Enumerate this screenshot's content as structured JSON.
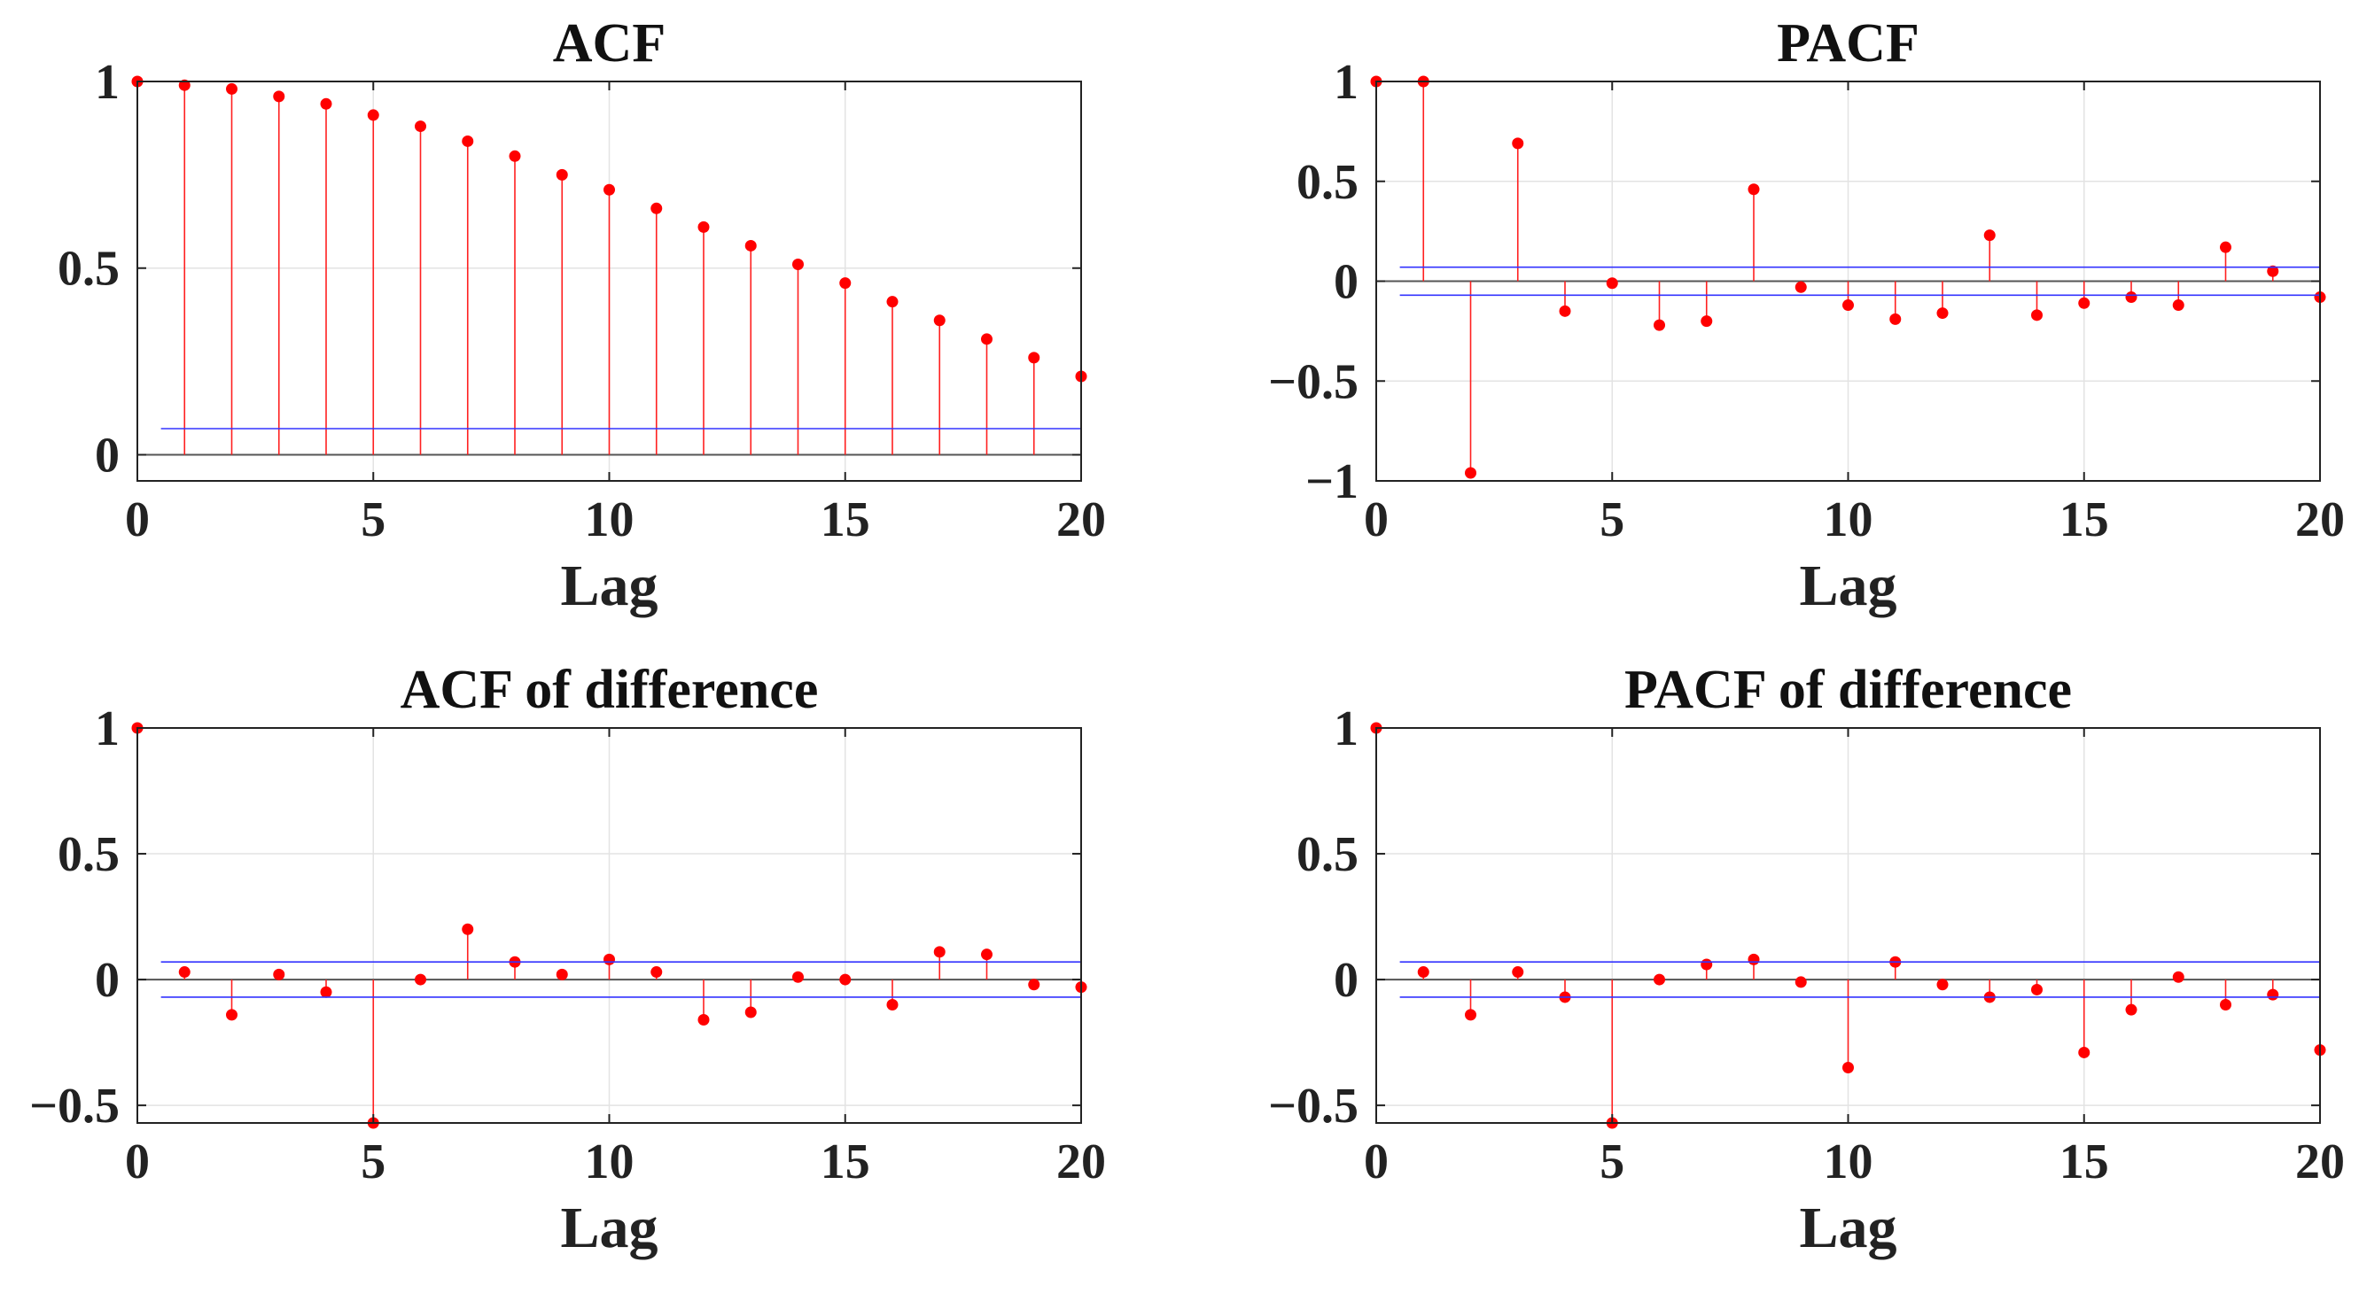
{
  "colors": {
    "stem": "#ff2020",
    "marker": "#ff0000",
    "bound": "#3333ff",
    "zero": "#555555",
    "grid": "#e3e3e3",
    "axis": "#222222"
  },
  "chart_data": [
    {
      "type": "stem",
      "title": "ACF",
      "xlabel": "Lag",
      "ylabel": "",
      "xlim": [
        0,
        20
      ],
      "ylim": [
        -0.07,
        1.0
      ],
      "x_ticks": [
        0,
        5,
        10,
        15,
        20
      ],
      "x_tick_labels": [
        "0",
        "5",
        "10",
        "15",
        "20"
      ],
      "y_ticks": [
        0,
        0.5,
        1
      ],
      "y_tick_labels": [
        "0",
        "0.5",
        "1"
      ],
      "grid": true,
      "lags": [
        0,
        1,
        2,
        3,
        4,
        5,
        6,
        7,
        8,
        9,
        10,
        11,
        12,
        13,
        14,
        15,
        16,
        17,
        18,
        19,
        20
      ],
      "values": [
        1.0,
        0.99,
        0.98,
        0.96,
        0.94,
        0.91,
        0.88,
        0.84,
        0.8,
        0.75,
        0.71,
        0.66,
        0.61,
        0.56,
        0.51,
        0.46,
        0.41,
        0.36,
        0.31,
        0.26,
        0.21
      ],
      "confidence_bounds": [
        0.07
      ]
    },
    {
      "type": "stem",
      "title": "PACF",
      "xlabel": "Lag",
      "ylabel": "",
      "xlim": [
        0,
        20
      ],
      "ylim": [
        -1.0,
        1.0
      ],
      "x_ticks": [
        0,
        5,
        10,
        15,
        20
      ],
      "x_tick_labels": [
        "0",
        "5",
        "10",
        "15",
        "20"
      ],
      "y_ticks": [
        -1,
        -0.5,
        0,
        0.5,
        1
      ],
      "y_tick_labels": [
        "−1",
        "−0.5",
        "0",
        "0.5",
        "1"
      ],
      "grid": true,
      "lags": [
        0,
        1,
        2,
        3,
        4,
        5,
        6,
        7,
        8,
        9,
        10,
        11,
        12,
        13,
        14,
        15,
        16,
        17,
        18,
        19,
        20
      ],
      "values": [
        1.0,
        1.0,
        -0.96,
        0.69,
        -0.15,
        -0.01,
        -0.22,
        -0.2,
        0.46,
        -0.03,
        -0.12,
        -0.19,
        -0.16,
        0.23,
        -0.17,
        -0.11,
        -0.08,
        -0.12,
        0.17,
        0.05,
        -0.08
      ],
      "confidence_bounds": [
        0.07,
        -0.07
      ]
    },
    {
      "type": "stem",
      "title": "ACF of difference",
      "xlabel": "Lag",
      "ylabel": "",
      "xlim": [
        0,
        20
      ],
      "ylim": [
        -0.57,
        1.0
      ],
      "x_ticks": [
        0,
        5,
        10,
        15,
        20
      ],
      "x_tick_labels": [
        "0",
        "5",
        "10",
        "15",
        "20"
      ],
      "y_ticks": [
        -0.5,
        0,
        0.5,
        1
      ],
      "y_tick_labels": [
        "−0.5",
        "0",
        "0.5",
        "1"
      ],
      "grid": true,
      "lags": [
        0,
        1,
        2,
        3,
        4,
        5,
        6,
        7,
        8,
        9,
        10,
        11,
        12,
        13,
        14,
        15,
        16,
        17,
        18,
        19,
        20
      ],
      "values": [
        1.0,
        0.03,
        -0.14,
        0.02,
        -0.05,
        -0.57,
        0.0,
        0.2,
        0.07,
        0.02,
        0.08,
        0.03,
        -0.16,
        -0.13,
        0.01,
        0.0,
        -0.1,
        0.11,
        0.1,
        -0.02,
        -0.03
      ],
      "confidence_bounds": [
        0.07,
        -0.07
      ]
    },
    {
      "type": "stem",
      "title": "PACF of difference",
      "xlabel": "Lag",
      "ylabel": "",
      "xlim": [
        0,
        20
      ],
      "ylim": [
        -0.57,
        1.0
      ],
      "x_ticks": [
        0,
        5,
        10,
        15,
        20
      ],
      "x_tick_labels": [
        "0",
        "5",
        "10",
        "15",
        "20"
      ],
      "y_ticks": [
        -0.5,
        0,
        0.5,
        1
      ],
      "y_tick_labels": [
        "−0.5",
        "0",
        "0.5",
        "1"
      ],
      "grid": true,
      "lags": [
        0,
        1,
        2,
        3,
        4,
        5,
        6,
        7,
        8,
        9,
        10,
        11,
        12,
        13,
        14,
        15,
        16,
        17,
        18,
        19,
        20
      ],
      "values": [
        1.0,
        0.03,
        -0.14,
        0.03,
        -0.07,
        -0.57,
        0.0,
        0.06,
        0.08,
        -0.01,
        -0.35,
        0.07,
        -0.02,
        -0.07,
        -0.04,
        -0.29,
        -0.12,
        0.01,
        -0.1,
        -0.06,
        -0.28
      ],
      "confidence_bounds": [
        0.07,
        -0.07
      ]
    }
  ]
}
